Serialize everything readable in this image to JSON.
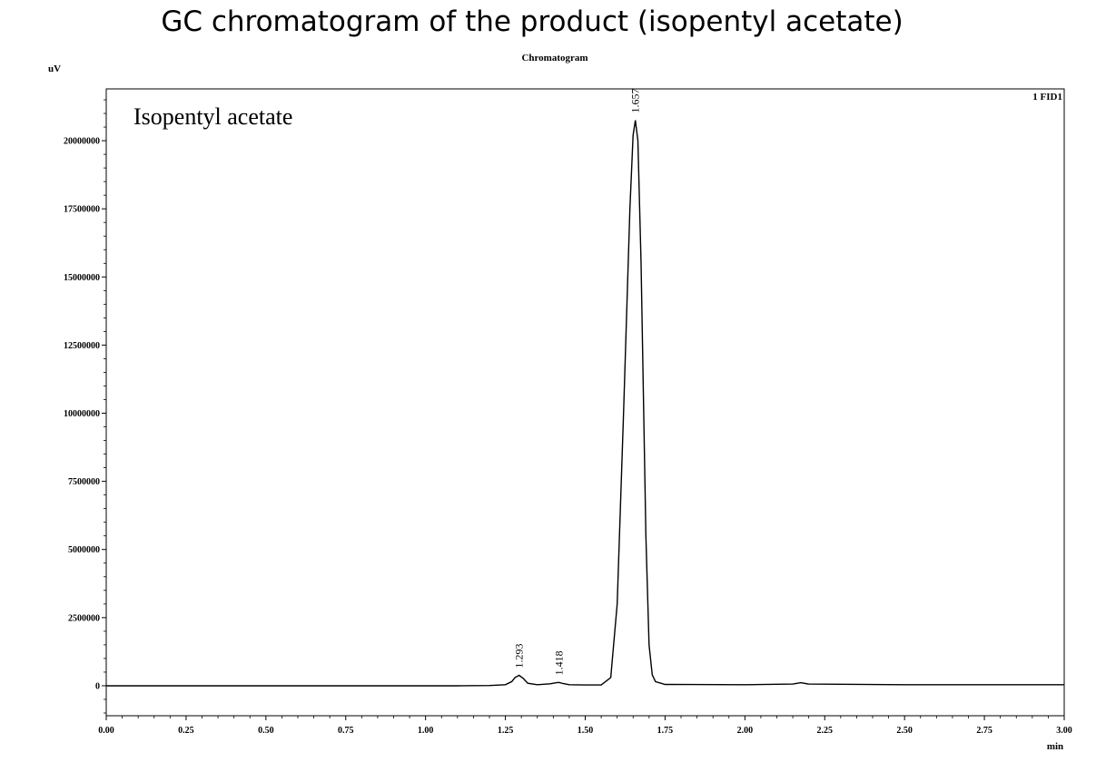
{
  "header": {
    "title": "GC chromatogram of the product (isopentyl acetate)"
  },
  "chart_data": {
    "type": "line",
    "title": "Chromatogram",
    "annotation": "Isopentyl acetate",
    "detector_label": "1 FID1",
    "ylabel": "uV",
    "xlabel": "min",
    "xlim": [
      0,
      3.0
    ],
    "ylim": [
      -1100000,
      21900000
    ],
    "grid": false,
    "x_ticks": [
      0,
      0.25,
      0.5,
      0.75,
      1.0,
      1.25,
      1.5,
      1.75,
      2.0,
      2.25,
      2.5,
      2.75,
      3.0
    ],
    "x_tick_labels": [
      "0.00",
      "0.25",
      "0.50",
      "0.75",
      "1.00",
      "1.25",
      "1.50",
      "1.75",
      "2.00",
      "2.25",
      "2.50",
      "2.75",
      "3.00"
    ],
    "y_ticks": [
      0,
      2500000,
      5000000,
      7500000,
      10000000,
      12500000,
      15000000,
      17500000,
      20000000
    ],
    "y_tick_labels": [
      "0",
      "2500000",
      "5000000",
      "7500000",
      "10000000",
      "12500000",
      "15000000",
      "17500000",
      "20000000"
    ],
    "peaks": [
      {
        "rt": 1.293,
        "label": "1.293",
        "height": 380000
      },
      {
        "rt": 1.418,
        "label": "1.418",
        "height": 120000
      },
      {
        "rt": 1.657,
        "label": "1.657",
        "height": 20750000
      }
    ],
    "series": [
      {
        "x": [
          0,
          1.1,
          1.2,
          1.25,
          1.27,
          1.28,
          1.293,
          1.305,
          1.32,
          1.35,
          1.39,
          1.41,
          1.418,
          1.43,
          1.45,
          1.5,
          1.55,
          1.58,
          1.6,
          1.62,
          1.64,
          1.65,
          1.657,
          1.665,
          1.675,
          1.69,
          1.7,
          1.71,
          1.72,
          1.75,
          2.0,
          2.15,
          2.175,
          2.2,
          2.5,
          3.0
        ],
        "y": [
          0,
          0,
          10000,
          40000,
          150000,
          300000,
          380000,
          280000,
          90000,
          40000,
          70000,
          110000,
          120000,
          80000,
          40000,
          30000,
          30000,
          300000,
          3000000,
          10000000,
          17500000,
          20200000,
          20750000,
          20000000,
          15500000,
          5500000,
          1500000,
          400000,
          150000,
          50000,
          40000,
          60000,
          110000,
          60000,
          40000,
          40000
        ]
      }
    ]
  }
}
